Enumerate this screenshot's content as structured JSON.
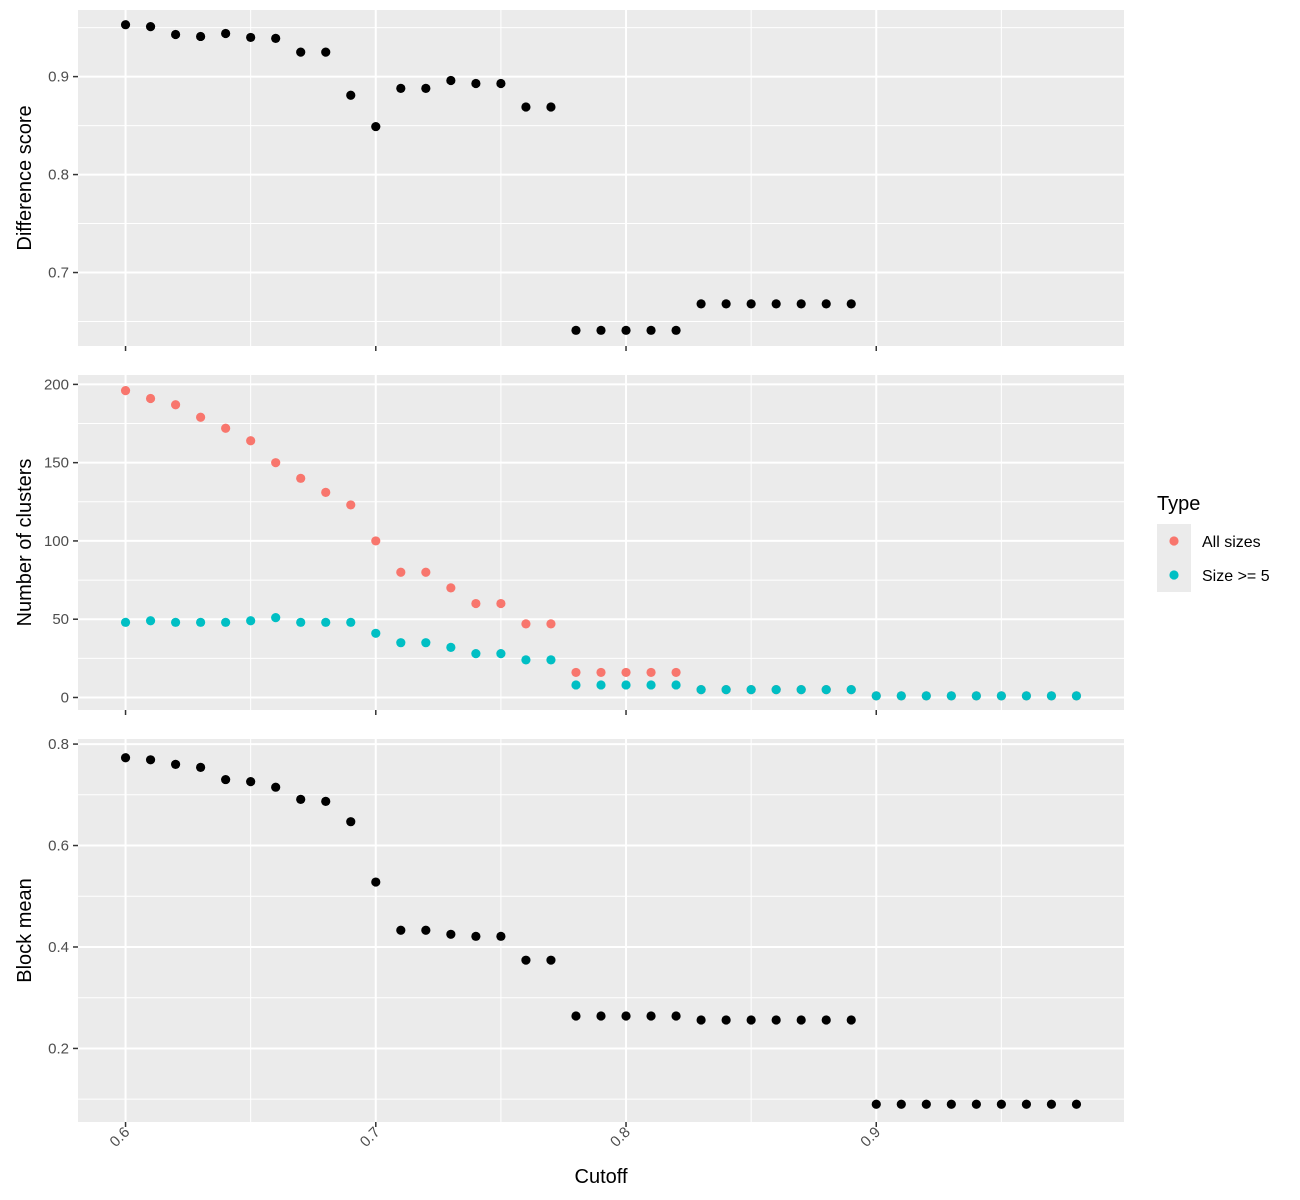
{
  "chart_data": {
    "type": "scatter",
    "xlabel": "Cutoff",
    "xlim": [
      0.581,
      0.999
    ],
    "x_ticks": [
      0.6,
      0.7,
      0.8,
      0.9
    ],
    "x_tick_labels": [
      "0.6",
      "0.7",
      "0.8",
      "0.9"
    ],
    "x_tick_label_rotation": -45,
    "grid": true,
    "legend": {
      "title": "Type",
      "placement": "right",
      "entries": [
        {
          "label": "All sizes",
          "color": "#F8766D"
        },
        {
          "label": "Size >= 5",
          "color": "#00BFC4"
        }
      ]
    },
    "panels": [
      {
        "id": "difference",
        "ylabel": "Difference score",
        "ylim": [
          0.625,
          0.968
        ],
        "y_ticks": [
          0.7,
          0.8,
          0.9
        ],
        "y_tick_labels": [
          "0.7",
          "0.8",
          "0.9"
        ],
        "series": [
          {
            "color": "#000000",
            "x": [
              0.6,
              0.61,
              0.62,
              0.63,
              0.64,
              0.65,
              0.66,
              0.67,
              0.68,
              0.69,
              0.7,
              0.71,
              0.72,
              0.73,
              0.74,
              0.75,
              0.76,
              0.77,
              0.78,
              0.79,
              0.8,
              0.81,
              0.82,
              0.83,
              0.84,
              0.85,
              0.86,
              0.87,
              0.88,
              0.89
            ],
            "y": [
              0.953,
              0.951,
              0.943,
              0.941,
              0.944,
              0.94,
              0.939,
              0.925,
              0.925,
              0.881,
              0.849,
              0.888,
              0.888,
              0.896,
              0.893,
              0.893,
              0.869,
              0.869,
              0.641,
              0.641,
              0.641,
              0.641,
              0.641,
              0.668,
              0.668,
              0.668,
              0.668,
              0.668,
              0.668,
              0.668
            ]
          }
        ]
      },
      {
        "id": "clusters",
        "ylabel": "Number of clusters",
        "ylim": [
          -8,
          206
        ],
        "y_ticks": [
          0,
          50,
          100,
          150,
          200
        ],
        "y_tick_labels": [
          "0",
          "50",
          "100",
          "150",
          "200"
        ],
        "series": [
          {
            "name": "All sizes",
            "color": "#F8766D",
            "x": [
              0.6,
              0.61,
              0.62,
              0.63,
              0.64,
              0.65,
              0.66,
              0.67,
              0.68,
              0.69,
              0.7,
              0.71,
              0.72,
              0.73,
              0.74,
              0.75,
              0.76,
              0.77,
              0.78,
              0.79,
              0.8,
              0.81,
              0.82,
              0.83,
              0.84,
              0.85,
              0.86,
              0.87,
              0.88,
              0.89,
              0.9,
              0.91,
              0.92,
              0.93,
              0.94,
              0.95,
              0.96,
              0.97,
              0.98
            ],
            "y": [
              196,
              191,
              187,
              179,
              172,
              164,
              150,
              140,
              131,
              123,
              100,
              80,
              80,
              70,
              60,
              60,
              47,
              47,
              16,
              16,
              16,
              16,
              16,
              5,
              5,
              5,
              5,
              5,
              5,
              5,
              1,
              1,
              1,
              1,
              1,
              1,
              1,
              1,
              1
            ]
          },
          {
            "name": "Size >= 5",
            "color": "#00BFC4",
            "x": [
              0.6,
              0.61,
              0.62,
              0.63,
              0.64,
              0.65,
              0.66,
              0.67,
              0.68,
              0.69,
              0.7,
              0.71,
              0.72,
              0.73,
              0.74,
              0.75,
              0.76,
              0.77,
              0.78,
              0.79,
              0.8,
              0.81,
              0.82,
              0.83,
              0.84,
              0.85,
              0.86,
              0.87,
              0.88,
              0.89,
              0.9,
              0.91,
              0.92,
              0.93,
              0.94,
              0.95,
              0.96,
              0.97,
              0.98
            ],
            "y": [
              48,
              49,
              48,
              48,
              48,
              49,
              51,
              48,
              48,
              48,
              41,
              35,
              35,
              32,
              28,
              28,
              24,
              24,
              8,
              8,
              8,
              8,
              8,
              5,
              5,
              5,
              5,
              5,
              5,
              5,
              1,
              1,
              1,
              1,
              1,
              1,
              1,
              1,
              1
            ]
          }
        ]
      },
      {
        "id": "block_mean",
        "ylabel": "Block mean",
        "ylim": [
          0.055,
          0.81
        ],
        "y_ticks": [
          0.2,
          0.4,
          0.6,
          0.8
        ],
        "y_tick_labels": [
          "0.2",
          "0.4",
          "0.6",
          "0.8"
        ],
        "series": [
          {
            "color": "#000000",
            "x": [
              0.6,
              0.61,
              0.62,
              0.63,
              0.64,
              0.65,
              0.66,
              0.67,
              0.68,
              0.69,
              0.7,
              0.71,
              0.72,
              0.73,
              0.74,
              0.75,
              0.76,
              0.77,
              0.78,
              0.79,
              0.8,
              0.81,
              0.82,
              0.83,
              0.84,
              0.85,
              0.86,
              0.87,
              0.88,
              0.89,
              0.9,
              0.91,
              0.92,
              0.93,
              0.94,
              0.95,
              0.96,
              0.97,
              0.98
            ],
            "y": [
              0.773,
              0.769,
              0.76,
              0.754,
              0.73,
              0.726,
              0.715,
              0.691,
              0.687,
              0.647,
              0.528,
              0.433,
              0.433,
              0.425,
              0.421,
              0.421,
              0.374,
              0.374,
              0.264,
              0.264,
              0.264,
              0.264,
              0.264,
              0.256,
              0.256,
              0.256,
              0.256,
              0.256,
              0.256,
              0.256,
              0.09,
              0.09,
              0.09,
              0.09,
              0.09,
              0.09,
              0.09,
              0.09,
              0.09
            ]
          }
        ]
      }
    ]
  }
}
